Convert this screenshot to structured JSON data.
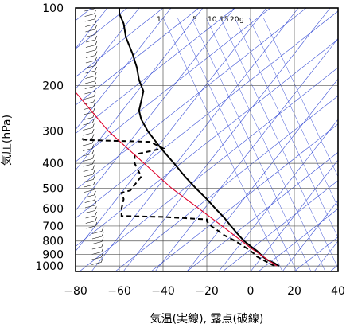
{
  "chart_data": {
    "type": "line",
    "title": "",
    "xlabel": "気温(実線), 露点(破線)",
    "ylabel": "気圧(hPa)",
    "xlim": [
      -80,
      40
    ],
    "ylim": [
      1050,
      100
    ],
    "y_scale": "log",
    "x_ticks": [
      "−80",
      "−60",
      "−40",
      "−20",
      "0",
      "20",
      "40"
    ],
    "x_tick_values": [
      -80,
      -60,
      -40,
      -20,
      0,
      20,
      40
    ],
    "y_ticks": [
      "100",
      "200",
      "300",
      "400",
      "500",
      "600",
      "700",
      "800",
      "900",
      "1000"
    ],
    "y_tick_values": [
      100,
      200,
      300,
      400,
      500,
      600,
      700,
      800,
      900,
      1000
    ],
    "grid": true,
    "legend": "none",
    "mixing_ratio_labels": [
      "1",
      "5",
      "10",
      "15",
      "20",
      "g"
    ],
    "colors": {
      "temperature": "#000000",
      "dewpoint": "#000000",
      "reference_line": "#e0002a",
      "isotherms_adiabats": "#3a4fd6",
      "grid": "#555555"
    },
    "series": [
      {
        "style": "solid",
        "points": [
          {
            "p": 1000,
            "t": 13
          },
          {
            "p": 975,
            "t": 11
          },
          {
            "p": 950,
            "t": 8
          },
          {
            "p": 925,
            "t": 6
          },
          {
            "p": 900,
            "t": 4.5
          },
          {
            "p": 875,
            "t": 3
          },
          {
            "p": 850,
            "t": 1
          },
          {
            "p": 800,
            "t": -3
          },
          {
            "p": 750,
            "t": -6
          },
          {
            "p": 700,
            "t": -9
          },
          {
            "p": 650,
            "t": -12
          },
          {
            "p": 600,
            "t": -16
          },
          {
            "p": 550,
            "t": -20
          },
          {
            "p": 500,
            "t": -25
          },
          {
            "p": 450,
            "t": -30
          },
          {
            "p": 400,
            "t": -35
          },
          {
            "p": 350,
            "t": -41
          },
          {
            "p": 300,
            "t": -47
          },
          {
            "p": 270,
            "t": -50
          },
          {
            "p": 250,
            "t": -51
          },
          {
            "p": 230,
            "t": -50
          },
          {
            "p": 210,
            "t": -49
          },
          {
            "p": 190,
            "t": -51
          },
          {
            "p": 170,
            "t": -52
          },
          {
            "p": 150,
            "t": -54
          },
          {
            "p": 130,
            "t": -57
          },
          {
            "p": 115,
            "t": -58
          },
          {
            "p": 105,
            "t": -60
          },
          {
            "p": 100,
            "t": -60
          }
        ]
      },
      {
        "style": "dashed",
        "points": [
          {
            "p": 1000,
            "t": 11
          },
          {
            "p": 950,
            "t": 6
          },
          {
            "p": 920,
            "t": 3
          },
          {
            "p": 900,
            "t": 2
          },
          {
            "p": 850,
            "t": -2
          },
          {
            "p": 800,
            "t": -7
          },
          {
            "p": 760,
            "t": -12
          },
          {
            "p": 700,
            "t": -18
          },
          {
            "p": 670,
            "t": -20
          },
          {
            "p": 660,
            "t": -20
          },
          {
            "p": 645,
            "t": -40
          },
          {
            "p": 640,
            "t": -59
          },
          {
            "p": 600,
            "t": -59
          },
          {
            "p": 550,
            "t": -58
          },
          {
            "p": 520,
            "t": -59
          },
          {
            "p": 510,
            "t": -55
          },
          {
            "p": 450,
            "t": -50
          },
          {
            "p": 400,
            "t": -53
          },
          {
            "p": 370,
            "t": -53
          },
          {
            "p": 350,
            "t": -40
          },
          {
            "p": 330,
            "t": -46
          },
          {
            "p": 325,
            "t": -75
          },
          {
            "p": 320,
            "t": -78
          }
        ]
      },
      {
        "style": "solid-red",
        "points": [
          {
            "p": 1000,
            "t": 12
          },
          {
            "p": 850,
            "t": 0
          },
          {
            "p": 700,
            "t": -13
          },
          {
            "p": 500,
            "t": -36
          },
          {
            "p": 300,
            "t": -65
          },
          {
            "p": 212,
            "t": -80
          }
        ]
      }
    ]
  }
}
